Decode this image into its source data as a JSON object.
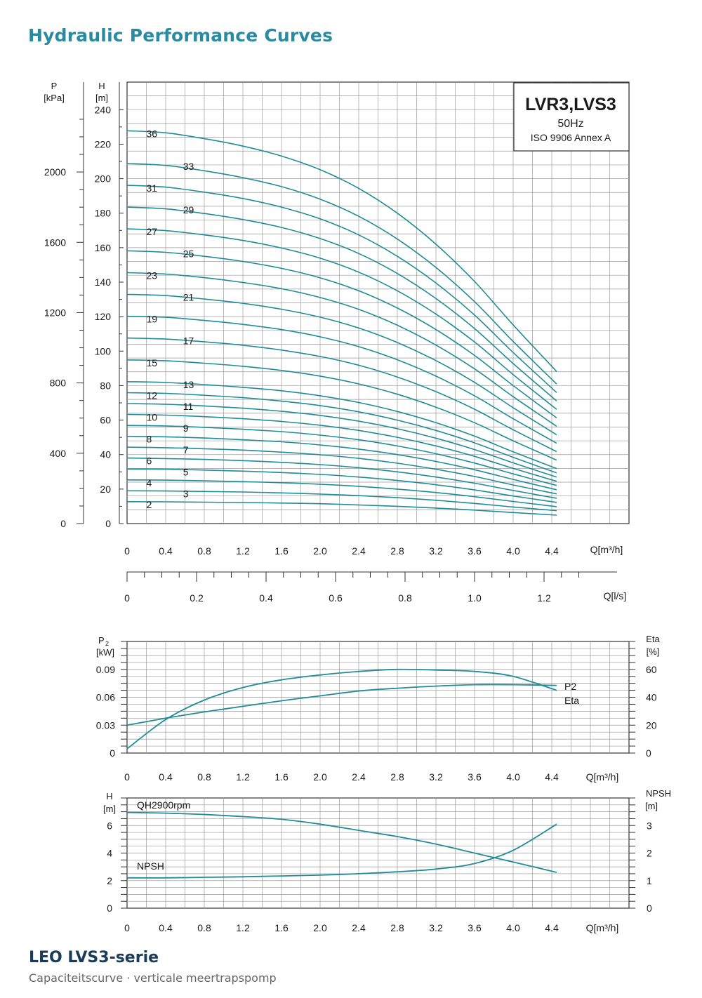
{
  "page": {
    "title": "Hydraulic Performance Curves",
    "footer_title": "LEO LVS3-serie",
    "footer_subtitle": "Capaciteitscurve  ·  verticale meertrapspomp"
  },
  "colors": {
    "curve": "#1f8c97",
    "grid": "#9a9a9a",
    "axis": "#333333",
    "title": "#2a8aa0"
  },
  "chart_data": [
    {
      "type": "line",
      "legend": {
        "model": "LVR3,LVS3",
        "frequency": "50Hz",
        "standard": "ISO 9906 Annex A"
      },
      "y_left": {
        "unit_symbol": "P",
        "unit": "[kPa]",
        "ticks": [
          "0",
          "400",
          "800",
          "1200",
          "1600",
          "2000"
        ]
      },
      "y_right": {
        "unit_symbol": "H",
        "unit": "[m]",
        "ticks": [
          "0",
          "20",
          "40",
          "60",
          "80",
          "100",
          "120",
          "140",
          "160",
          "180",
          "200",
          "220",
          "240"
        ]
      },
      "x": {
        "label": "Q[m³/h]",
        "ticks": [
          "0",
          "0.4",
          "0.8",
          "1.2",
          "1.6",
          "2.0",
          "2.4",
          "2.8",
          "3.2",
          "3.6",
          "4.0",
          "4.4"
        ]
      },
      "x2": {
        "label": "Q[l/s]",
        "ticks": [
          "0",
          "0.2",
          "0.4",
          "0.6",
          "0.8",
          "1.0",
          "1.2"
        ]
      },
      "ylim": [
        0,
        256
      ],
      "xlim": [
        0,
        5.2
      ],
      "series_x": [
        0,
        0.4,
        0.8,
        1.2,
        1.6,
        2.0,
        2.4,
        2.8,
        3.2,
        3.6,
        4.0,
        4.45
      ],
      "series": [
        {
          "name": "2",
          "values": [
            12.7,
            12.6,
            12.4,
            12.2,
            11.9,
            11.5,
            10.8,
            10,
            9,
            7.8,
            6.4,
            4.9
          ]
        },
        {
          "name": "3",
          "values": [
            19,
            18.9,
            18.6,
            18.3,
            17.8,
            17.1,
            16.2,
            15,
            13.5,
            11.7,
            9.6,
            7.5
          ]
        },
        {
          "name": "4",
          "values": [
            25.3,
            25.2,
            24.8,
            24.3,
            23.7,
            22.8,
            21.6,
            20,
            18,
            15.6,
            12.8,
            9.8
          ]
        },
        {
          "name": "5",
          "values": [
            31.6,
            31.5,
            31,
            30.4,
            29.6,
            28.5,
            27,
            25,
            22.5,
            19.5,
            16,
            12.3
          ]
        },
        {
          "name": "6",
          "values": [
            38,
            37.7,
            37.2,
            36.5,
            35.5,
            34.2,
            32.4,
            30,
            27,
            23.4,
            19.2,
            14.7
          ]
        },
        {
          "name": "7",
          "values": [
            44.3,
            44,
            43.4,
            42.6,
            41.4,
            39.9,
            37.8,
            35,
            31.5,
            27.3,
            22.4,
            17.2
          ]
        },
        {
          "name": "8",
          "values": [
            50.6,
            50.3,
            49.6,
            48.6,
            47.4,
            45.6,
            43.2,
            40,
            36,
            31.2,
            25.6,
            19.6
          ]
        },
        {
          "name": "9",
          "values": [
            56.9,
            56.6,
            55.8,
            54.7,
            53.3,
            51.3,
            48.6,
            45,
            40.5,
            35.1,
            28.8,
            22.1
          ]
        },
        {
          "name": "10",
          "values": [
            63.3,
            62.9,
            62,
            60.8,
            59.2,
            57,
            54,
            50,
            45,
            39,
            32,
            24.5
          ]
        },
        {
          "name": "11",
          "values": [
            69.6,
            69.2,
            68.2,
            66.9,
            65.1,
            62.7,
            59.4,
            55,
            49.5,
            42.9,
            35.2,
            27
          ]
        },
        {
          "name": "12",
          "values": [
            75.9,
            75.5,
            74.4,
            73,
            71,
            68.4,
            64.8,
            60,
            54,
            46.8,
            38.4,
            29.4
          ]
        },
        {
          "name": "13",
          "values": [
            82.3,
            81.8,
            80.6,
            79,
            77,
            74.1,
            70.2,
            65,
            58.5,
            50.7,
            41.6,
            31.9
          ]
        },
        {
          "name": "15",
          "values": [
            94.9,
            94.4,
            93,
            91.2,
            88.8,
            85.5,
            81,
            75,
            67.5,
            58.5,
            48,
            36.8
          ]
        },
        {
          "name": "17",
          "values": [
            107.6,
            107,
            105.4,
            103.4,
            100.6,
            96.9,
            91.8,
            85,
            76.5,
            66.3,
            54.4,
            41.7
          ]
        },
        {
          "name": "19",
          "values": [
            120.2,
            119.6,
            117.8,
            115.5,
            112.5,
            108.3,
            102.6,
            95,
            85.5,
            74.1,
            60.8,
            46.6
          ]
        },
        {
          "name": "21",
          "values": [
            132.9,
            132.2,
            130.2,
            127.7,
            124.3,
            119.7,
            113.4,
            105,
            94.5,
            81.9,
            67.2,
            51.5
          ]
        },
        {
          "name": "23",
          "values": [
            145.5,
            144.7,
            142.6,
            139.8,
            136.2,
            131.1,
            124.2,
            115,
            103.5,
            89.7,
            73.6,
            56.4
          ]
        },
        {
          "name": "25",
          "values": [
            158.2,
            157.3,
            155,
            152,
            148,
            142.5,
            135,
            125,
            112.5,
            97.5,
            80,
            61.3
          ]
        },
        {
          "name": "27",
          "values": [
            170.9,
            169.9,
            167.4,
            164.2,
            159.8,
            153.9,
            145.8,
            135,
            121.5,
            105.3,
            86.4,
            66.2
          ]
        },
        {
          "name": "29",
          "values": [
            183.5,
            182.5,
            179.8,
            176.3,
            171.7,
            165.3,
            156.6,
            145,
            130.5,
            113.1,
            92.8,
            71.1
          ]
        },
        {
          "name": "31",
          "values": [
            196.2,
            195.1,
            192.2,
            188.5,
            183.5,
            176.7,
            167.4,
            155,
            139.5,
            120.9,
            99.2,
            76
          ]
        },
        {
          "name": "33",
          "values": [
            208.8,
            207.7,
            204.6,
            200.6,
            195.4,
            188.1,
            178.2,
            165,
            148.5,
            128.7,
            105.6,
            80.9
          ]
        },
        {
          "name": "36",
          "values": [
            227.8,
            226.6,
            223.2,
            218.9,
            213.1,
            205.2,
            194.4,
            180,
            162,
            140.4,
            115.2,
            88.2
          ]
        }
      ]
    },
    {
      "type": "line",
      "y_left": {
        "symbol": "P",
        "subscript": "2",
        "unit": "[kW]",
        "ticks": [
          "0",
          "0.03",
          "0.06",
          "0.09"
        ]
      },
      "y_right": {
        "label": "Eta",
        "unit": "[%]",
        "ticks": [
          "0",
          "20",
          "40",
          "60"
        ]
      },
      "x": {
        "label": "Q[m³/h]",
        "ticks": [
          "0",
          "0.4",
          "0.8",
          "1.2",
          "1.6",
          "2.0",
          "2.4",
          "2.8",
          "3.2",
          "3.6",
          "4.0",
          "4.4"
        ]
      },
      "series": [
        {
          "name": "P2",
          "axis": "right",
          "x": [
            0,
            0.4,
            0.8,
            1.2,
            1.6,
            2.0,
            2.4,
            2.8,
            3.2,
            3.6,
            4.0,
            4.45
          ],
          "values": [
            20,
            25,
            29.5,
            33.5,
            37.5,
            41,
            44.5,
            46.5,
            48,
            49,
            49,
            48.5
          ]
        },
        {
          "name": "Eta",
          "axis": "right",
          "x": [
            0,
            0.4,
            0.8,
            1.2,
            1.6,
            2.0,
            2.4,
            2.8,
            3.2,
            3.6,
            4.0,
            4.45
          ],
          "values": [
            3,
            24,
            38,
            47,
            52.5,
            56,
            58.5,
            60,
            59.5,
            58.5,
            55,
            45
          ]
        }
      ]
    },
    {
      "type": "line",
      "y_left": {
        "label": "H",
        "unit": "[m]",
        "ticks": [
          "0",
          "2",
          "4",
          "6"
        ]
      },
      "y_right": {
        "label": "NPSH",
        "unit": "[m]",
        "ticks": [
          "0",
          "1",
          "2",
          "3"
        ]
      },
      "x": {
        "label": "Q[m³/h]",
        "ticks": [
          "0",
          "0.4",
          "0.8",
          "1.2",
          "1.6",
          "2.0",
          "2.4",
          "2.8",
          "3.2",
          "3.6",
          "4.0",
          "4.4"
        ]
      },
      "series": [
        {
          "name": "QH2900rpm",
          "axis": "left",
          "x": [
            0,
            0.4,
            0.8,
            1.2,
            1.6,
            2.0,
            2.4,
            2.8,
            3.2,
            3.6,
            4.0,
            4.45
          ],
          "values": [
            6.95,
            6.9,
            6.8,
            6.65,
            6.45,
            6.1,
            5.65,
            5.2,
            4.65,
            4.0,
            3.35,
            2.6
          ]
        },
        {
          "name": "NPSH",
          "axis": "right",
          "x": [
            0,
            0.4,
            0.8,
            1.2,
            1.6,
            2.0,
            2.4,
            2.8,
            3.2,
            3.6,
            4.0,
            4.45
          ],
          "values": [
            1.1,
            1.1,
            1.12,
            1.14,
            1.17,
            1.2,
            1.25,
            1.32,
            1.42,
            1.62,
            2.1,
            3.05
          ]
        }
      ]
    }
  ]
}
